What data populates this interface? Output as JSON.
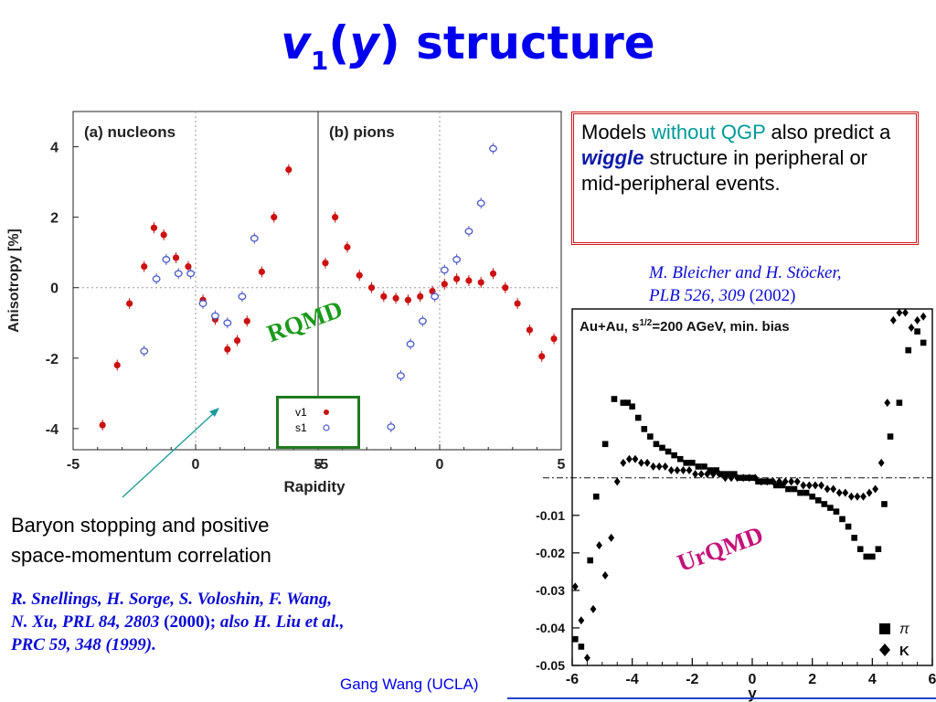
{
  "title": {
    "v": "v",
    "sub": "1",
    "open": "(",
    "y": "y",
    "close": ")",
    "rest": " structure"
  },
  "models_note": {
    "p1": "Models ",
    "without_qgp": "without QGP",
    "p2": " also predict a ",
    "wiggle": "wiggle",
    "p3": " structure in peripheral or mid-peripheral events."
  },
  "bleicher_citation": {
    "line1": "M. Bleicher and H. Stöcker,",
    "line2_italic": "PLB 526, 309",
    "line2_year": " (2002)"
  },
  "rqmd_label": "RQMD",
  "urqmd_label": "UrQMD",
  "baryon_note": {
    "line1": "Baryon stopping and positive",
    "line2": "space-momentum correlation"
  },
  "snellings_citation": {
    "line1": "R. Snellings, H. Sorge, S. Voloshin, F. Wang,",
    "line2_a": "N. Xu, PRL 84, 2803",
    "line2_year": " (2000);",
    "line2_b": "  also H. Liu et al.,",
    "line3": "PRC 59, 348 (1999)."
  },
  "footer": "Gang Wang (UCLA)",
  "colors": {
    "title": "#0000ee",
    "box_border": "#d01818",
    "rqmd": "#1a9a1a",
    "urqmd": "#c4127a",
    "v1_marker": "#cc1111",
    "s1_marker": "#4a5ac8"
  },
  "chart_data": [
    {
      "type": "scatter",
      "panels": [
        {
          "label": "(a) nucleons",
          "xlabel": "Rapidity",
          "ylabel": "Anisotropy [%]",
          "xlim": [
            -5,
            5
          ],
          "ylim": [
            -4.6,
            5
          ],
          "xticks": [
            "-5",
            "0",
            "5"
          ],
          "yticks": [
            "4",
            "2",
            "0",
            "-2",
            "-4"
          ],
          "series": [
            {
              "name": "v1",
              "marker": "filled-diamond",
              "x": [
                -3.8,
                -3.2,
                -2.7,
                -2.1,
                -1.7,
                -1.3,
                -0.8,
                -0.3,
                0.3,
                0.8,
                1.3,
                1.7,
                2.1,
                2.7,
                3.2,
                3.8
              ],
              "y": [
                -3.9,
                -2.2,
                -0.45,
                0.6,
                1.7,
                1.5,
                0.85,
                0.6,
                -0.35,
                -0.9,
                -1.75,
                -1.5,
                -0.95,
                0.45,
                2.0,
                3.35
              ]
            },
            {
              "name": "s1",
              "marker": "open-circle",
              "x": [
                -2.1,
                -1.6,
                -1.2,
                -0.7,
                -0.2,
                0.3,
                0.8,
                1.3,
                1.9,
                2.4
              ],
              "y": [
                -1.8,
                0.25,
                0.8,
                0.4,
                0.4,
                -0.45,
                -0.8,
                -1.0,
                -0.25,
                1.4
              ]
            }
          ]
        },
        {
          "label": "(b) pions",
          "xlabel": "Rapidity",
          "xlim": [
            -5,
            5
          ],
          "ylim": [
            -4.6,
            5
          ],
          "xticks": [
            "-5",
            "0",
            "5"
          ],
          "series": [
            {
              "name": "v1",
              "marker": "filled-diamond",
              "x": [
                -4.7,
                -4.3,
                -3.8,
                -3.3,
                -2.8,
                -2.3,
                -1.8,
                -1.3,
                -0.8,
                -0.3,
                0.2,
                0.7,
                1.2,
                1.7,
                2.2,
                2.7,
                3.2,
                3.7,
                4.2,
                4.7
              ],
              "y": [
                0.7,
                2.0,
                1.15,
                0.35,
                0.0,
                -0.25,
                -0.3,
                -0.35,
                -0.25,
                -0.1,
                0.1,
                0.25,
                0.2,
                0.15,
                0.4,
                0.0,
                -0.45,
                -1.2,
                -1.95,
                -1.45
              ]
            },
            {
              "name": "s1",
              "marker": "open-circle",
              "x": [
                -2.0,
                -1.6,
                -1.2,
                -0.7,
                -0.2,
                0.2,
                0.7,
                1.2,
                1.7,
                2.2
              ],
              "y": [
                -3.95,
                -2.5,
                -1.6,
                -0.95,
                -0.25,
                0.5,
                0.8,
                1.6,
                2.4,
                3.95
              ]
            }
          ]
        }
      ]
    },
    {
      "type": "scatter",
      "title": "Au+Au, s^1/2=200 AGeV, min. bias",
      "xlabel": "y",
      "xlim": [
        -6,
        6
      ],
      "ylim": [
        -0.05,
        0.045
      ],
      "xticks": [
        "-6",
        "-4",
        "-2",
        "0",
        "2",
        "4",
        "6"
      ],
      "yticks": [
        "-0.01",
        "-0.02",
        "-0.03",
        "-0.04",
        "-0.05"
      ],
      "series": [
        {
          "name": "π",
          "marker": "filled-square",
          "x": [
            -5.9,
            -5.7,
            -5.4,
            -5.2,
            -4.9,
            -4.6,
            -4.3,
            -4.15,
            -4.0,
            -3.8,
            -3.6,
            -3.4,
            -3.2,
            -3.0,
            -2.8,
            -2.6,
            -2.4,
            -2.2,
            -2.0,
            -1.8,
            -1.6,
            -1.4,
            -1.2,
            -1.0,
            -0.8,
            -0.6,
            -0.4,
            -0.2,
            0.0,
            0.2,
            0.4,
            0.6,
            0.8,
            1.0,
            1.2,
            1.4,
            1.6,
            1.8,
            2.0,
            2.2,
            2.4,
            2.6,
            2.8,
            3.0,
            3.2,
            3.4,
            3.6,
            3.8,
            4.0,
            4.2,
            4.4,
            4.6,
            4.9,
            5.2,
            5.5,
            5.7
          ],
          "y": [
            -0.043,
            -0.045,
            -0.022,
            -0.005,
            0.009,
            0.021,
            0.02,
            0.02,
            0.019,
            0.016,
            0.013,
            0.011,
            0.009,
            0.008,
            0.007,
            0.006,
            0.005,
            0.004,
            0.004,
            0.003,
            0.003,
            0.002,
            0.002,
            0.001,
            0.001,
            0.001,
            0.0,
            0.0,
            0.0,
            -0.001,
            -0.001,
            -0.001,
            -0.002,
            -0.002,
            -0.003,
            -0.003,
            -0.004,
            -0.004,
            -0.005,
            -0.006,
            -0.007,
            -0.008,
            -0.009,
            -0.011,
            -0.013,
            -0.016,
            -0.019,
            -0.021,
            -0.021,
            -0.019,
            -0.007,
            0.011,
            0.02,
            0.034,
            0.039,
            0.036
          ]
        },
        {
          "name": "K",
          "marker": "filled-diamond",
          "x": [
            -5.9,
            -5.7,
            -5.5,
            -5.3,
            -5.1,
            -4.9,
            -4.7,
            -4.5,
            -4.3,
            -4.1,
            -3.9,
            -3.7,
            -3.5,
            -3.3,
            -3.1,
            -2.9,
            -2.7,
            -2.5,
            -2.3,
            -2.1,
            -1.9,
            -1.7,
            -1.5,
            -1.3,
            -1.1,
            -0.9,
            -0.7,
            -0.5,
            -0.3,
            -0.1,
            0.1,
            0.3,
            0.5,
            0.7,
            0.9,
            1.1,
            1.3,
            1.5,
            1.7,
            1.9,
            2.1,
            2.3,
            2.5,
            2.7,
            2.9,
            3.1,
            3.3,
            3.5,
            3.7,
            3.9,
            4.1,
            4.3,
            4.5,
            4.7,
            4.9,
            5.1,
            5.3,
            5.5,
            5.7
          ],
          "y": [
            -0.029,
            -0.038,
            -0.048,
            -0.035,
            -0.018,
            -0.026,
            -0.016,
            -0.001,
            0.004,
            0.005,
            0.005,
            0.004,
            0.004,
            0.003,
            0.003,
            0.003,
            0.002,
            0.002,
            0.002,
            0.002,
            0.001,
            0.001,
            0.001,
            0.001,
            0.001,
            0.0,
            0.0,
            0.0,
            0.0,
            0.0,
            0.0,
            -0.001,
            -0.001,
            -0.001,
            -0.001,
            -0.001,
            -0.001,
            -0.001,
            -0.002,
            -0.002,
            -0.002,
            -0.002,
            -0.003,
            -0.003,
            -0.004,
            -0.004,
            -0.005,
            -0.005,
            -0.005,
            -0.004,
            -0.003,
            0.004,
            0.02,
            0.042,
            0.044,
            0.044,
            0.04,
            0.042,
            0.043
          ]
        }
      ],
      "legend": "bottom-right"
    }
  ]
}
